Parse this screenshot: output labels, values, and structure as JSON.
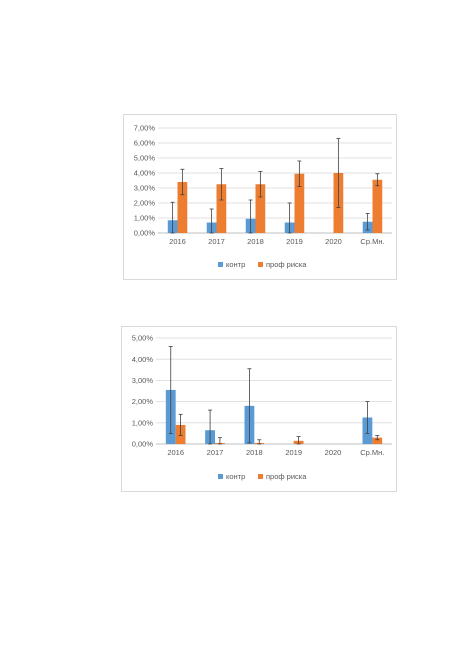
{
  "colors": {
    "kontr": "#5b9bd5",
    "prof": "#ed7d31",
    "grid": "#d9d9d9",
    "axis": "#bfbfbf",
    "error": "#404040"
  },
  "chart_data": [
    {
      "type": "bar",
      "title": "",
      "categories": [
        "2016",
        "2017",
        "2018",
        "2019",
        "2020",
        "Ср.Мн."
      ],
      "ylim": [
        0,
        0.07
      ],
      "yticks": [
        "0,00%",
        "1,00%",
        "2,00%",
        "3,00%",
        "4,00%",
        "5,00%",
        "6,00%",
        "7,00%"
      ],
      "grid": true,
      "legend_position": "bottom",
      "series": [
        {
          "name": "контр",
          "values": [
            0.0085,
            0.007,
            0.0095,
            0.007,
            0,
            0.0075
          ],
          "errors": [
            0.012,
            0.009,
            0.0125,
            0.013,
            0,
            0.0055
          ]
        },
        {
          "name": "проф риска",
          "values": [
            0.034,
            0.0325,
            0.0325,
            0.0395,
            0.04,
            0.0355
          ],
          "errors": [
            0.0085,
            0.0105,
            0.0085,
            0.0085,
            0.023,
            0.004
          ]
        }
      ]
    },
    {
      "type": "bar",
      "title": "",
      "categories": [
        "2016",
        "2017",
        "2018",
        "2019",
        "2020",
        "Ср.Мн."
      ],
      "ylim": [
        0,
        0.05
      ],
      "yticks": [
        "0,00%",
        "1,00%",
        "2,00%",
        "3,00%",
        "4,00%",
        "5,00%"
      ],
      "grid": true,
      "legend_position": "bottom",
      "series": [
        {
          "name": "контр",
          "values": [
            0.0255,
            0.0065,
            0.018,
            0,
            0,
            0.0125
          ],
          "errors": [
            0.0205,
            0.0095,
            0.0175,
            0,
            0,
            0.0075
          ]
        },
        {
          "name": "проф риска",
          "values": [
            0.009,
            0.0005,
            0.0005,
            0.0015,
            0,
            0.003
          ],
          "errors": [
            0.005,
            0.0025,
            0.0015,
            0.002,
            0,
            0.001
          ]
        }
      ]
    }
  ]
}
